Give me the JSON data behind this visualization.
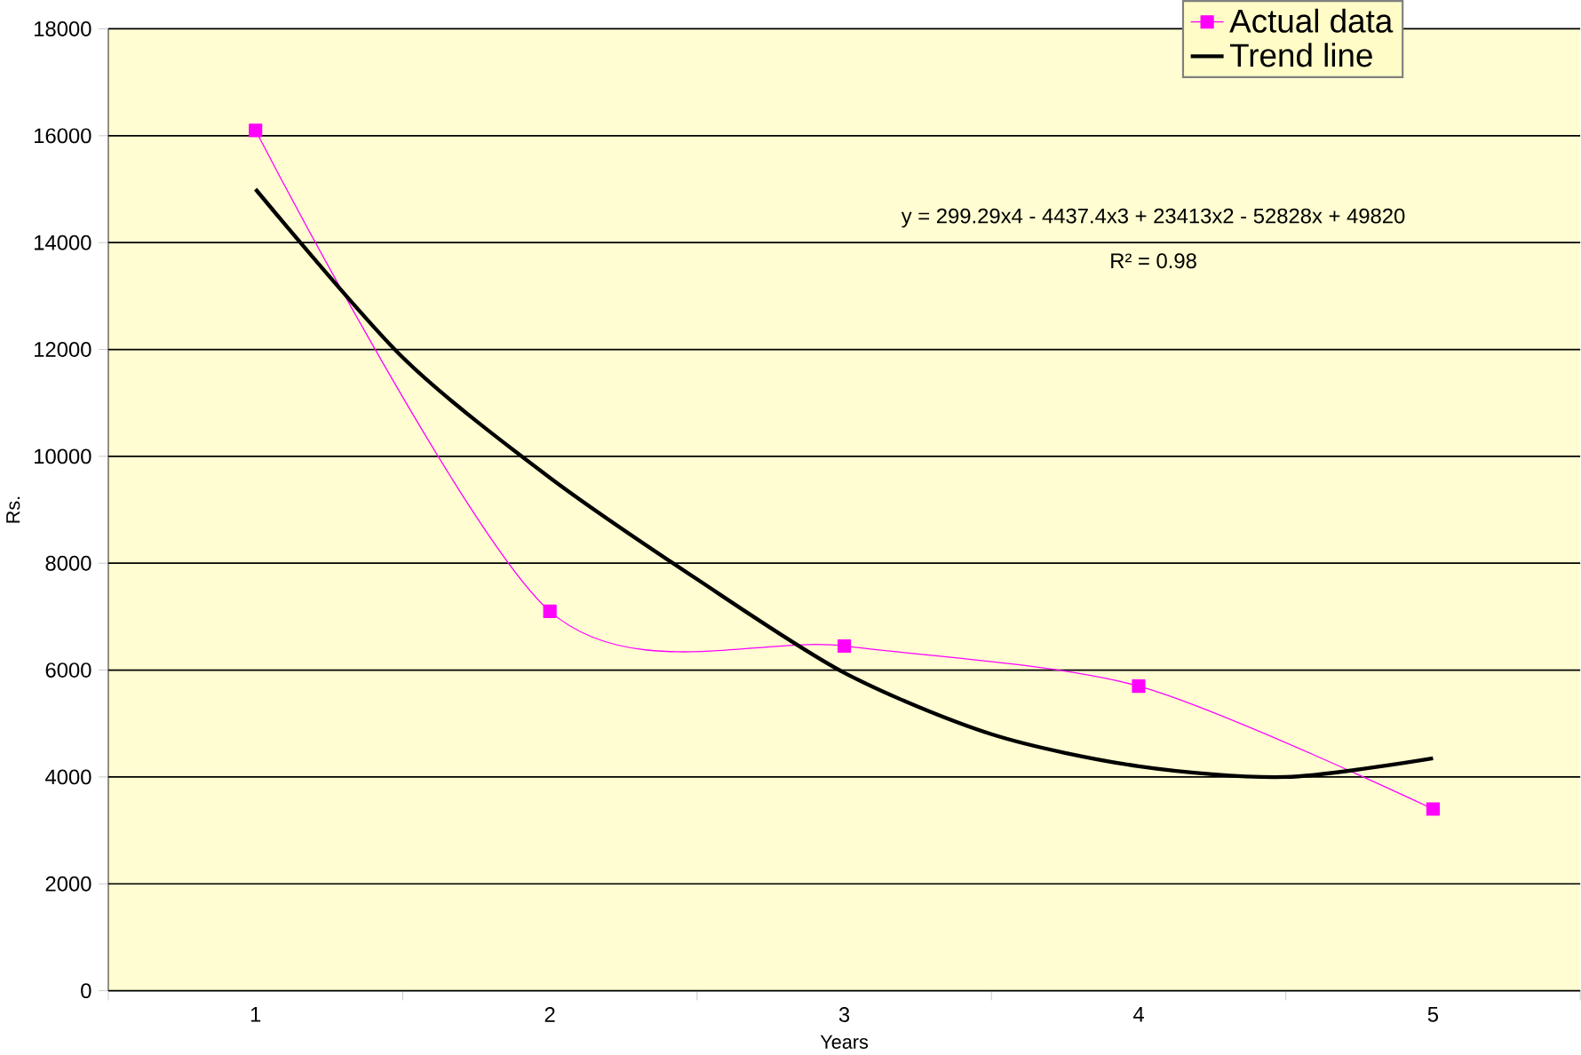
{
  "chart_data": {
    "type": "line",
    "xlabel": "Years",
    "ylabel": "Rs.",
    "x": [
      1,
      2,
      3,
      4,
      5
    ],
    "xlim": [
      0.5,
      5.5
    ],
    "xticks": [
      1,
      2,
      3,
      4,
      5
    ],
    "ylim": [
      0,
      18000
    ],
    "yticks": [
      0,
      2000,
      4000,
      6000,
      8000,
      10000,
      12000,
      14000,
      16000,
      18000
    ],
    "series": [
      {
        "name": "Actual data",
        "color": "#ff00ff",
        "marker": "square",
        "values": [
          16100,
          7100,
          6450,
          5700,
          3400
        ]
      },
      {
        "name": "Trend line",
        "color": "#000000",
        "marker": "none",
        "x": [
          1,
          1.5,
          2,
          2.5,
          3,
          3.5,
          4,
          4.5,
          5
        ],
        "values": [
          15000,
          11850,
          9600,
          7700,
          5950,
          4800,
          4200,
          4000,
          4350
        ]
      }
    ],
    "annotations": [
      "y = 299.29x4 - 4437.4x3 + 23413x2 - 52828x + 49820",
      "R² = 0.98"
    ],
    "grid": "y",
    "legend": "top right"
  }
}
